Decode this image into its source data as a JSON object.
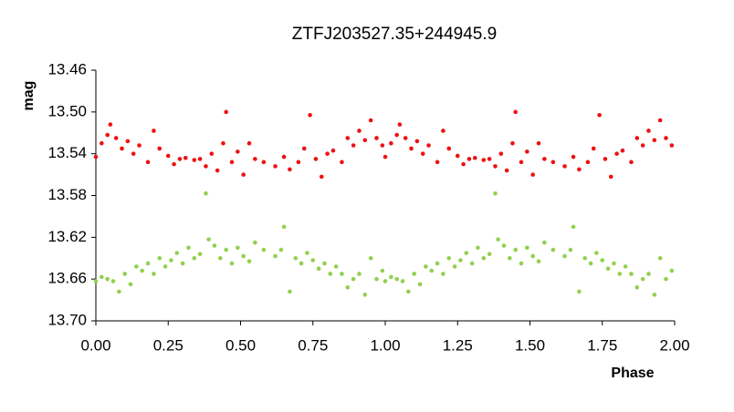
{
  "chart_data": {
    "type": "scatter",
    "title": "ZTFJ203527.35+244945.9",
    "x_label": "Phase",
    "y_label": "mag",
    "xlim": [
      0,
      2
    ],
    "ylim": [
      13.7,
      13.46
    ],
    "xticks": [
      {
        "value": 0,
        "label": "0.00"
      },
      0.25,
      {
        "value": 0.5,
        "label": "0.50"
      },
      0.75,
      {
        "value": 1,
        "label": "1.00"
      },
      1.25,
      {
        "value": 1.5,
        "label": "1.50"
      },
      1.75,
      {
        "value": 2,
        "label": "2.00"
      }
    ],
    "yticks": [
      13.46,
      {
        "value": 13.5,
        "label": "13.50"
      },
      13.54,
      13.58,
      13.62,
      13.66,
      {
        "value": 13.7,
        "label": "13.70"
      }
    ],
    "series": [
      {
        "color": "#ee1111",
        "x": [
          0.0,
          0.02,
          0.04,
          0.05,
          0.07,
          0.09,
          0.11,
          0.13,
          0.15,
          0.18,
          0.2,
          0.22,
          0.25,
          0.27,
          0.29,
          0.31,
          0.34,
          0.36,
          0.38,
          0.4,
          0.42,
          0.44,
          0.45,
          0.47,
          0.49,
          0.51,
          0.53,
          0.55,
          0.58,
          0.62,
          0.65,
          0.67,
          0.7,
          0.72,
          0.74,
          0.76,
          0.78,
          0.8,
          0.82,
          0.85,
          0.87,
          0.89,
          0.91,
          0.93,
          0.95,
          0.97,
          0.99,
          1.0,
          1.02,
          1.04,
          1.05,
          1.07,
          1.09,
          1.11,
          1.13,
          1.15,
          1.18,
          1.2,
          1.22,
          1.25,
          1.27,
          1.29,
          1.31,
          1.34,
          1.36,
          1.38,
          1.4,
          1.42,
          1.44,
          1.45,
          1.47,
          1.49,
          1.51,
          1.53,
          1.55,
          1.58,
          1.62,
          1.65,
          1.67,
          1.7,
          1.72,
          1.74,
          1.76,
          1.78,
          1.8,
          1.82,
          1.85,
          1.87,
          1.89,
          1.91,
          1.93,
          1.95,
          1.97,
          1.99
        ],
        "values": [
          13.543,
          13.53,
          13.522,
          13.512,
          13.525,
          13.535,
          13.528,
          13.54,
          13.532,
          13.548,
          13.518,
          13.535,
          13.542,
          13.55,
          13.545,
          13.544,
          13.546,
          13.545,
          13.552,
          13.54,
          13.556,
          13.53,
          13.5,
          13.548,
          13.538,
          13.56,
          13.53,
          13.545,
          13.548,
          13.552,
          13.543,
          13.555,
          13.548,
          13.535,
          13.503,
          13.545,
          13.562,
          13.54,
          13.537,
          13.548,
          13.525,
          13.532,
          13.518,
          13.527,
          13.508,
          13.525,
          13.532,
          13.543,
          13.53,
          13.522,
          13.512,
          13.525,
          13.535,
          13.528,
          13.54,
          13.532,
          13.548,
          13.518,
          13.535,
          13.542,
          13.55,
          13.545,
          13.544,
          13.546,
          13.545,
          13.552,
          13.54,
          13.556,
          13.53,
          13.5,
          13.548,
          13.538,
          13.56,
          13.53,
          13.545,
          13.548,
          13.552,
          13.543,
          13.555,
          13.548,
          13.535,
          13.503,
          13.545,
          13.562,
          13.54,
          13.537,
          13.548,
          13.525,
          13.532,
          13.518,
          13.527,
          13.508,
          13.525,
          13.532
        ]
      },
      {
        "color": "#92d050",
        "x": [
          0.0,
          0.02,
          0.04,
          0.06,
          0.08,
          0.1,
          0.12,
          0.14,
          0.16,
          0.18,
          0.2,
          0.22,
          0.24,
          0.26,
          0.28,
          0.3,
          0.32,
          0.34,
          0.36,
          0.38,
          0.39,
          0.41,
          0.43,
          0.45,
          0.47,
          0.49,
          0.51,
          0.53,
          0.55,
          0.58,
          0.62,
          0.64,
          0.65,
          0.67,
          0.69,
          0.71,
          0.73,
          0.75,
          0.77,
          0.79,
          0.81,
          0.83,
          0.85,
          0.87,
          0.89,
          0.91,
          0.93,
          0.95,
          0.97,
          0.99,
          1.0,
          1.02,
          1.04,
          1.06,
          1.08,
          1.1,
          1.12,
          1.14,
          1.16,
          1.18,
          1.2,
          1.22,
          1.24,
          1.26,
          1.28,
          1.3,
          1.32,
          1.34,
          1.36,
          1.38,
          1.39,
          1.41,
          1.43,
          1.45,
          1.47,
          1.49,
          1.51,
          1.53,
          1.55,
          1.58,
          1.62,
          1.64,
          1.65,
          1.67,
          1.69,
          1.71,
          1.73,
          1.75,
          1.77,
          1.79,
          1.81,
          1.83,
          1.85,
          1.87,
          1.89,
          1.91,
          1.93,
          1.95,
          1.97,
          1.99
        ],
        "values": [
          13.662,
          13.658,
          13.66,
          13.662,
          13.672,
          13.655,
          13.665,
          13.648,
          13.652,
          13.645,
          13.655,
          13.64,
          13.648,
          13.642,
          13.635,
          13.645,
          13.63,
          13.64,
          13.636,
          13.578,
          13.622,
          13.628,
          13.64,
          13.632,
          13.645,
          13.63,
          13.638,
          13.643,
          13.625,
          13.632,
          13.638,
          13.632,
          13.61,
          13.672,
          13.64,
          13.645,
          13.635,
          13.642,
          13.65,
          13.645,
          13.655,
          13.648,
          13.655,
          13.668,
          13.66,
          13.655,
          13.675,
          13.64,
          13.66,
          13.652,
          13.662,
          13.658,
          13.66,
          13.662,
          13.672,
          13.655,
          13.665,
          13.648,
          13.652,
          13.645,
          13.655,
          13.64,
          13.648,
          13.642,
          13.635,
          13.645,
          13.63,
          13.64,
          13.636,
          13.578,
          13.622,
          13.628,
          13.64,
          13.632,
          13.645,
          13.63,
          13.638,
          13.643,
          13.625,
          13.632,
          13.638,
          13.632,
          13.61,
          13.672,
          13.64,
          13.645,
          13.635,
          13.642,
          13.65,
          13.645,
          13.655,
          13.648,
          13.655,
          13.668,
          13.66,
          13.655,
          13.675,
          13.64,
          13.66,
          13.652
        ]
      }
    ]
  }
}
